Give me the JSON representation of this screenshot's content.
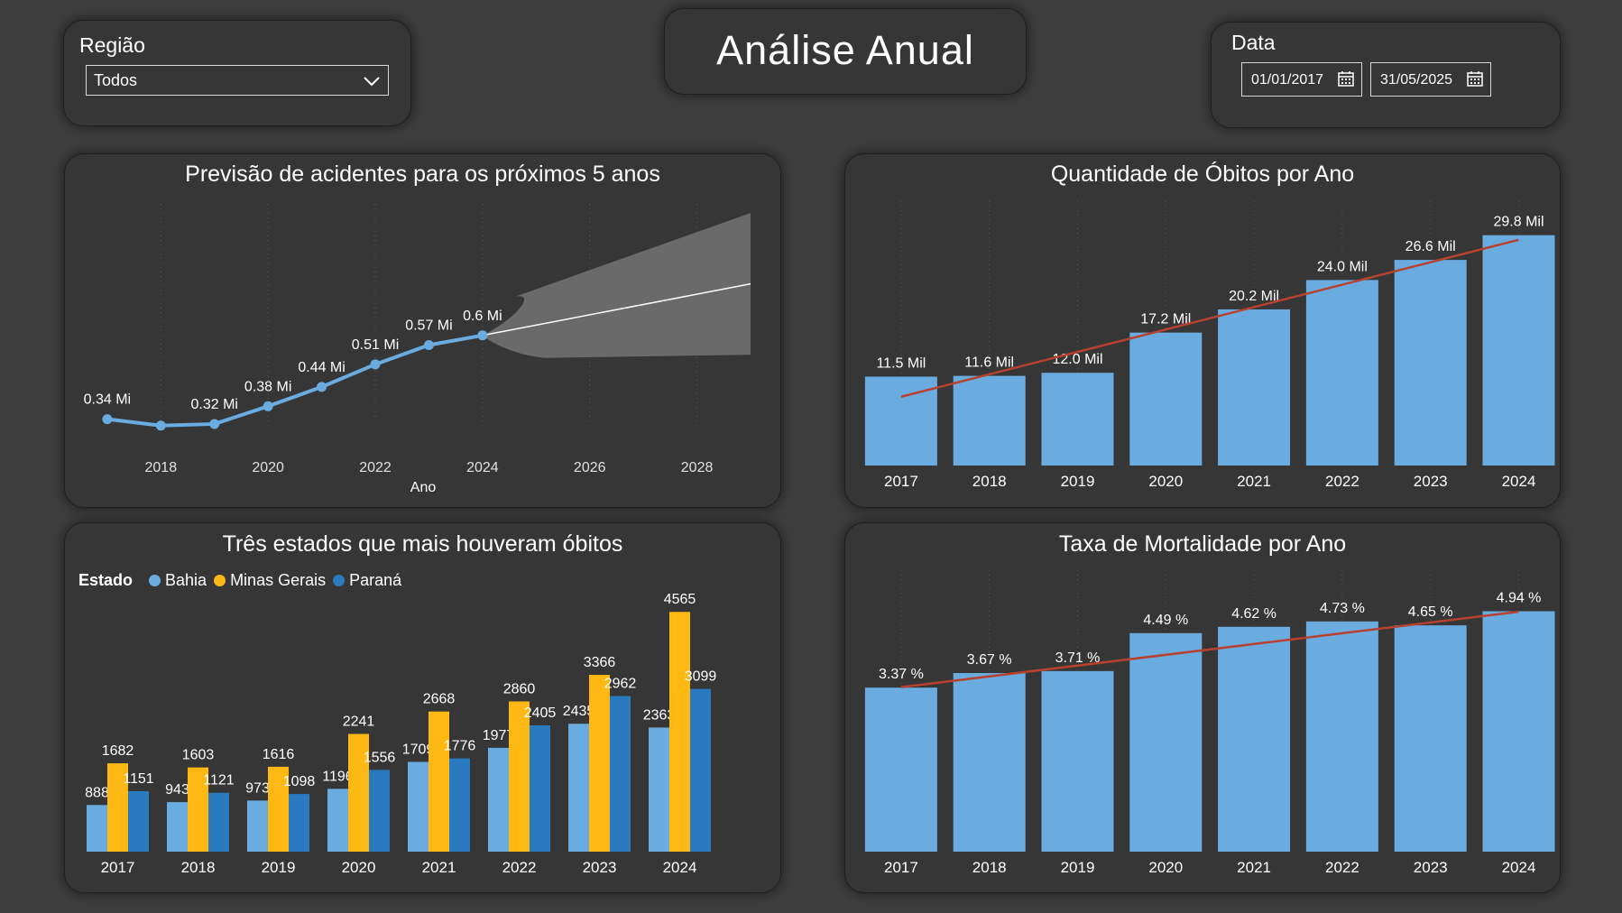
{
  "header": {
    "title": "Análise Anual"
  },
  "region_filter": {
    "label": "Região",
    "value": "Todos"
  },
  "date_filter": {
    "label": "Data",
    "start": "01/01/2017",
    "end": "31/05/2025"
  },
  "colors": {
    "light_blue": "#6aace0",
    "yellow": "#fdb813",
    "dark_blue": "#2a7ac0",
    "trend": "#b8412e",
    "forecast_band": "#6a6a6a"
  },
  "chart_data": [
    {
      "id": "forecast",
      "type": "line",
      "title": "Previsão de acidentes para os próximos 5 anos",
      "xlabel": "Ano",
      "ylabel": "",
      "x": [
        2017,
        2018,
        2019,
        2020,
        2021,
        2022,
        2023,
        2024
      ],
      "values": [
        0.34,
        0.32,
        0.325,
        0.38,
        0.44,
        0.51,
        0.57,
        0.6
      ],
      "data_labels": [
        "0.34 Mi",
        "",
        "0.32 Mi",
        "0.38 Mi",
        "0.44 Mi",
        "0.51 Mi",
        "0.57 Mi",
        "0.6 Mi"
      ],
      "x_ticks": [
        "2018",
        "2020",
        "2022",
        "2024",
        "2026",
        "2028"
      ],
      "x_tick_values": [
        2018,
        2020,
        2022,
        2024,
        2026,
        2028
      ],
      "forecast": {
        "x": [
          2024,
          2029
        ],
        "values": [
          0.6,
          0.76
        ],
        "upper": [
          0.6,
          0.98
        ],
        "lower": [
          0.6,
          0.54
        ]
      },
      "xlim": [
        2016.8,
        2029
      ],
      "ylim": [
        0.28,
        1.0
      ],
      "grid": "vertical dotted"
    },
    {
      "id": "deaths",
      "type": "bar",
      "title": "Quantidade de Óbitos por Ano",
      "categories": [
        "2017",
        "2018",
        "2019",
        "2020",
        "2021",
        "2022",
        "2023",
        "2024"
      ],
      "values": [
        11.5,
        11.6,
        12.0,
        17.2,
        20.2,
        24.0,
        26.6,
        29.8
      ],
      "data_labels": [
        "11.5 Mil",
        "11.6 Mil",
        "12.0 Mil",
        "17.2 Mil",
        "20.2 Mil",
        "24.0 Mil",
        "26.6 Mil",
        "29.8 Mil"
      ],
      "trend": [
        8.9,
        29.2
      ],
      "ylim": [
        0,
        33.5
      ]
    },
    {
      "id": "states",
      "type": "bar",
      "title": "Três estados que mais houveram óbitos",
      "legend_title": "Estado",
      "categories": [
        "2017",
        "2018",
        "2019",
        "2020",
        "2021",
        "2022",
        "2023",
        "2024"
      ],
      "series": [
        {
          "name": "Bahia",
          "values": [
            888,
            943,
            973,
            1196,
            1709,
            1977,
            2435,
            2363
          ]
        },
        {
          "name": "Minas Gerais",
          "values": [
            1682,
            1603,
            1616,
            2241,
            2668,
            2860,
            3366,
            4565
          ]
        },
        {
          "name": "Paraná",
          "values": [
            1151,
            1121,
            1098,
            1556,
            1776,
            2405,
            2962,
            3099
          ]
        }
      ],
      "ylim": [
        0,
        5050
      ]
    },
    {
      "id": "mortality",
      "type": "bar",
      "title": "Taxa de Mortalidade por Ano",
      "categories": [
        "2017",
        "2018",
        "2019",
        "2020",
        "2021",
        "2022",
        "2023",
        "2024"
      ],
      "values": [
        3.37,
        3.67,
        3.71,
        4.49,
        4.62,
        4.73,
        4.65,
        4.94
      ],
      "data_labels": [
        "3.37 %",
        "3.67 %",
        "3.71 %",
        "4.49 %",
        "4.62 %",
        "4.73 %",
        "4.65 %",
        "4.94 %"
      ],
      "trend": [
        3.38,
        4.93
      ],
      "ylim": [
        0,
        5.45
      ]
    }
  ]
}
